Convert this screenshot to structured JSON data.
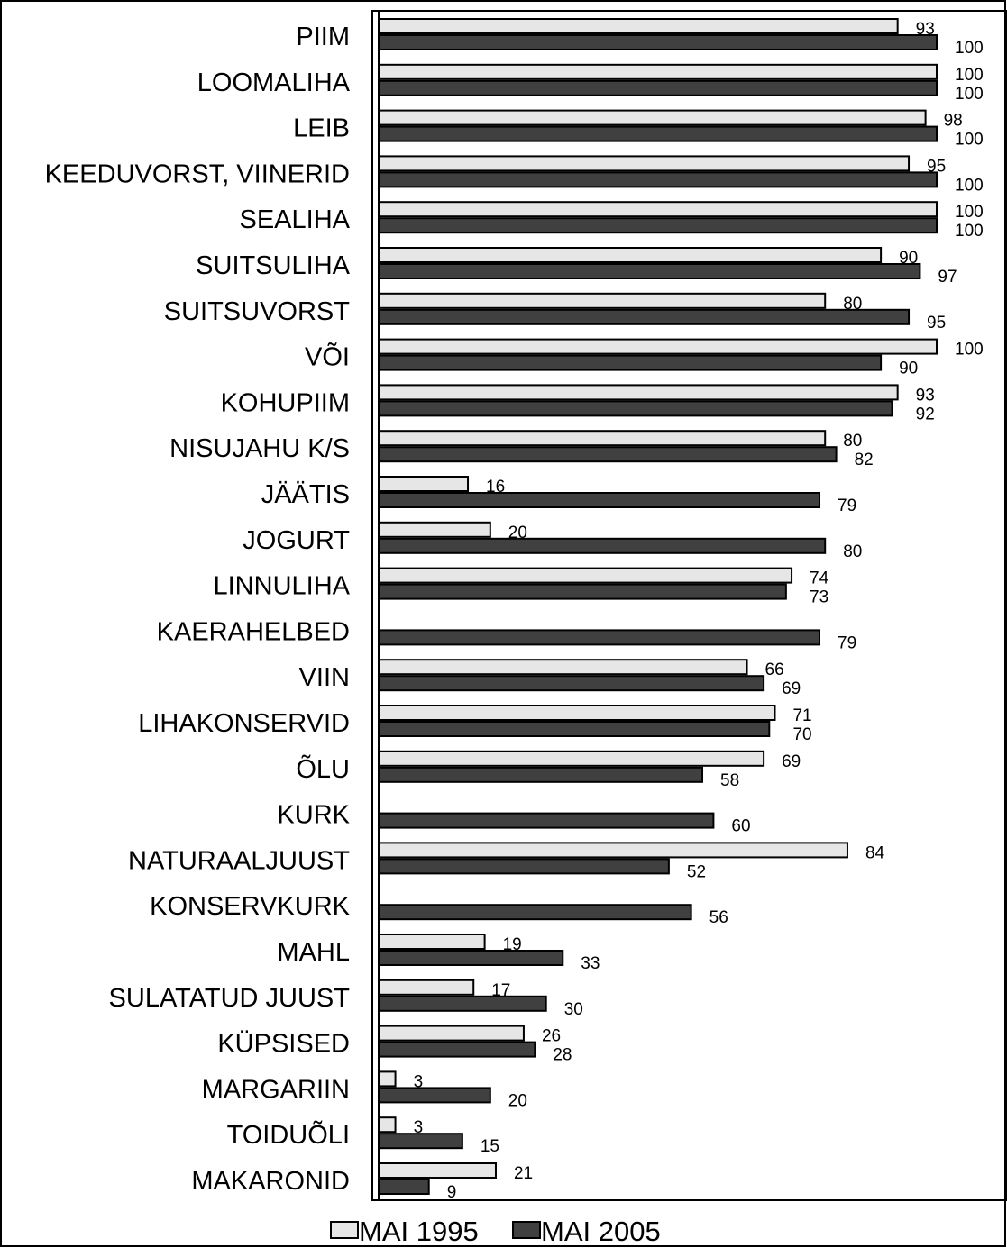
{
  "chart_data": {
    "type": "bar",
    "orientation": "horizontal",
    "categories": [
      "PIIM",
      "LOOMALIHA",
      "LEIB",
      "KEEDUVORST, VIINERID",
      "SEALIHA",
      "SUITSULIHA",
      "SUITSUVORST",
      "VÕI",
      "KOHUPIIM",
      "NISUJAHU K/S",
      "JÄÄTIS",
      "JOGURT",
      "LINNULIHA",
      "KAERAHELBED",
      "VIIN",
      "LIHAKONSERVID",
      "ÕLU",
      "KURK",
      "NATURAALJUUST",
      "KONSERVKURK",
      "MAHL",
      "SULATATUD JUUST",
      "KÜPSISED",
      "MARGARIIN",
      "TOIDUÕLI",
      "MAKARONID"
    ],
    "series": [
      {
        "name": "MAI 1995",
        "color": "#e6e6e6",
        "values": [
          93,
          100,
          98,
          95,
          100,
          90,
          80,
          100,
          93,
          80,
          16,
          20,
          74,
          null,
          66,
          71,
          69,
          null,
          84,
          null,
          19,
          17,
          26,
          3,
          3,
          21
        ],
        "labels": [
          "93",
          "100",
          "98",
          "95",
          "100",
          "90",
          "80",
          "100",
          "93",
          "80",
          "16",
          "20",
          "74",
          "",
          "66",
          "71",
          "69",
          "",
          "84",
          "",
          "19",
          "17",
          "26",
          "3",
          "3",
          "21"
        ]
      },
      {
        "name": "MAI 2005",
        "color": "#404040",
        "values": [
          100,
          100,
          100,
          100,
          100,
          97,
          95,
          90,
          92,
          82,
          79,
          80,
          73,
          79,
          69,
          70,
          58,
          60,
          52,
          56,
          33,
          30,
          28,
          20,
          15,
          9
        ],
        "labels": [
          "100",
          "100",
          "100",
          "100",
          "100",
          "97",
          "95",
          "90",
          "92",
          "82",
          "79",
          "80",
          "73",
          "79",
          "69",
          "70",
          "58",
          "60",
          "52",
          "56",
          "33",
          "30",
          "28",
          "20",
          "15",
          "9"
        ]
      }
    ],
    "xlim": [
      0,
      112
    ],
    "grid": false,
    "legend_position": "bottom"
  }
}
